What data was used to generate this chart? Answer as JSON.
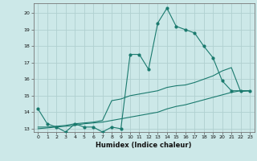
{
  "xlabel": "Humidex (Indice chaleur)",
  "bg_color": "#cce8e8",
  "grid_color": "#b0d0d0",
  "line_color": "#1a7a6e",
  "xlim": [
    -0.5,
    23.5
  ],
  "ylim": [
    12.8,
    20.6
  ],
  "xticks": [
    0,
    1,
    2,
    3,
    4,
    5,
    6,
    7,
    8,
    9,
    10,
    11,
    12,
    13,
    14,
    15,
    16,
    17,
    18,
    19,
    20,
    21,
    22,
    23
  ],
  "yticks": [
    13,
    14,
    15,
    16,
    17,
    18,
    19,
    20
  ],
  "line1_x": [
    0,
    1,
    2,
    3,
    4,
    5,
    6,
    7,
    8,
    9,
    10,
    11,
    12,
    13,
    14,
    15,
    16,
    17,
    18,
    19,
    20,
    21,
    22,
    23
  ],
  "line1_y": [
    14.2,
    13.3,
    13.1,
    12.8,
    13.3,
    13.1,
    13.1,
    12.8,
    13.1,
    13.0,
    17.5,
    17.5,
    16.6,
    19.4,
    20.3,
    19.2,
    19.0,
    18.8,
    18.0,
    17.3,
    15.9,
    15.3,
    15.3,
    15.3
  ],
  "line2_x": [
    0,
    1,
    2,
    3,
    4,
    5,
    6,
    7,
    8,
    9,
    10,
    11,
    12,
    13,
    14,
    15,
    16,
    17,
    18,
    19,
    20,
    21,
    22,
    23
  ],
  "line2_y": [
    13.1,
    13.1,
    13.15,
    13.2,
    13.3,
    13.35,
    13.4,
    13.5,
    14.7,
    14.8,
    15.0,
    15.1,
    15.2,
    15.3,
    15.5,
    15.6,
    15.65,
    15.8,
    16.0,
    16.2,
    16.5,
    16.7,
    15.25,
    15.3
  ],
  "line3_x": [
    0,
    1,
    2,
    3,
    4,
    5,
    6,
    7,
    8,
    9,
    10,
    11,
    12,
    13,
    14,
    15,
    16,
    17,
    18,
    19,
    20,
    21,
    22,
    23
  ],
  "line3_y": [
    13.0,
    13.05,
    13.1,
    13.15,
    13.2,
    13.3,
    13.35,
    13.4,
    13.5,
    13.6,
    13.7,
    13.8,
    13.9,
    14.0,
    14.2,
    14.35,
    14.45,
    14.6,
    14.75,
    14.9,
    15.05,
    15.2,
    15.3,
    15.3
  ],
  "marker_x": [
    0,
    1,
    2,
    3,
    4,
    5,
    6,
    7,
    8,
    9,
    10,
    11,
    12,
    13,
    14,
    15,
    16,
    17,
    18,
    19,
    20,
    21,
    22,
    23
  ],
  "marker_y": [
    14.2,
    13.3,
    13.1,
    12.8,
    13.3,
    13.1,
    13.1,
    12.8,
    13.1,
    13.0,
    17.5,
    17.5,
    16.6,
    19.4,
    20.3,
    19.2,
    19.0,
    18.8,
    18.0,
    17.3,
    15.9,
    15.3,
    15.3,
    15.3
  ]
}
